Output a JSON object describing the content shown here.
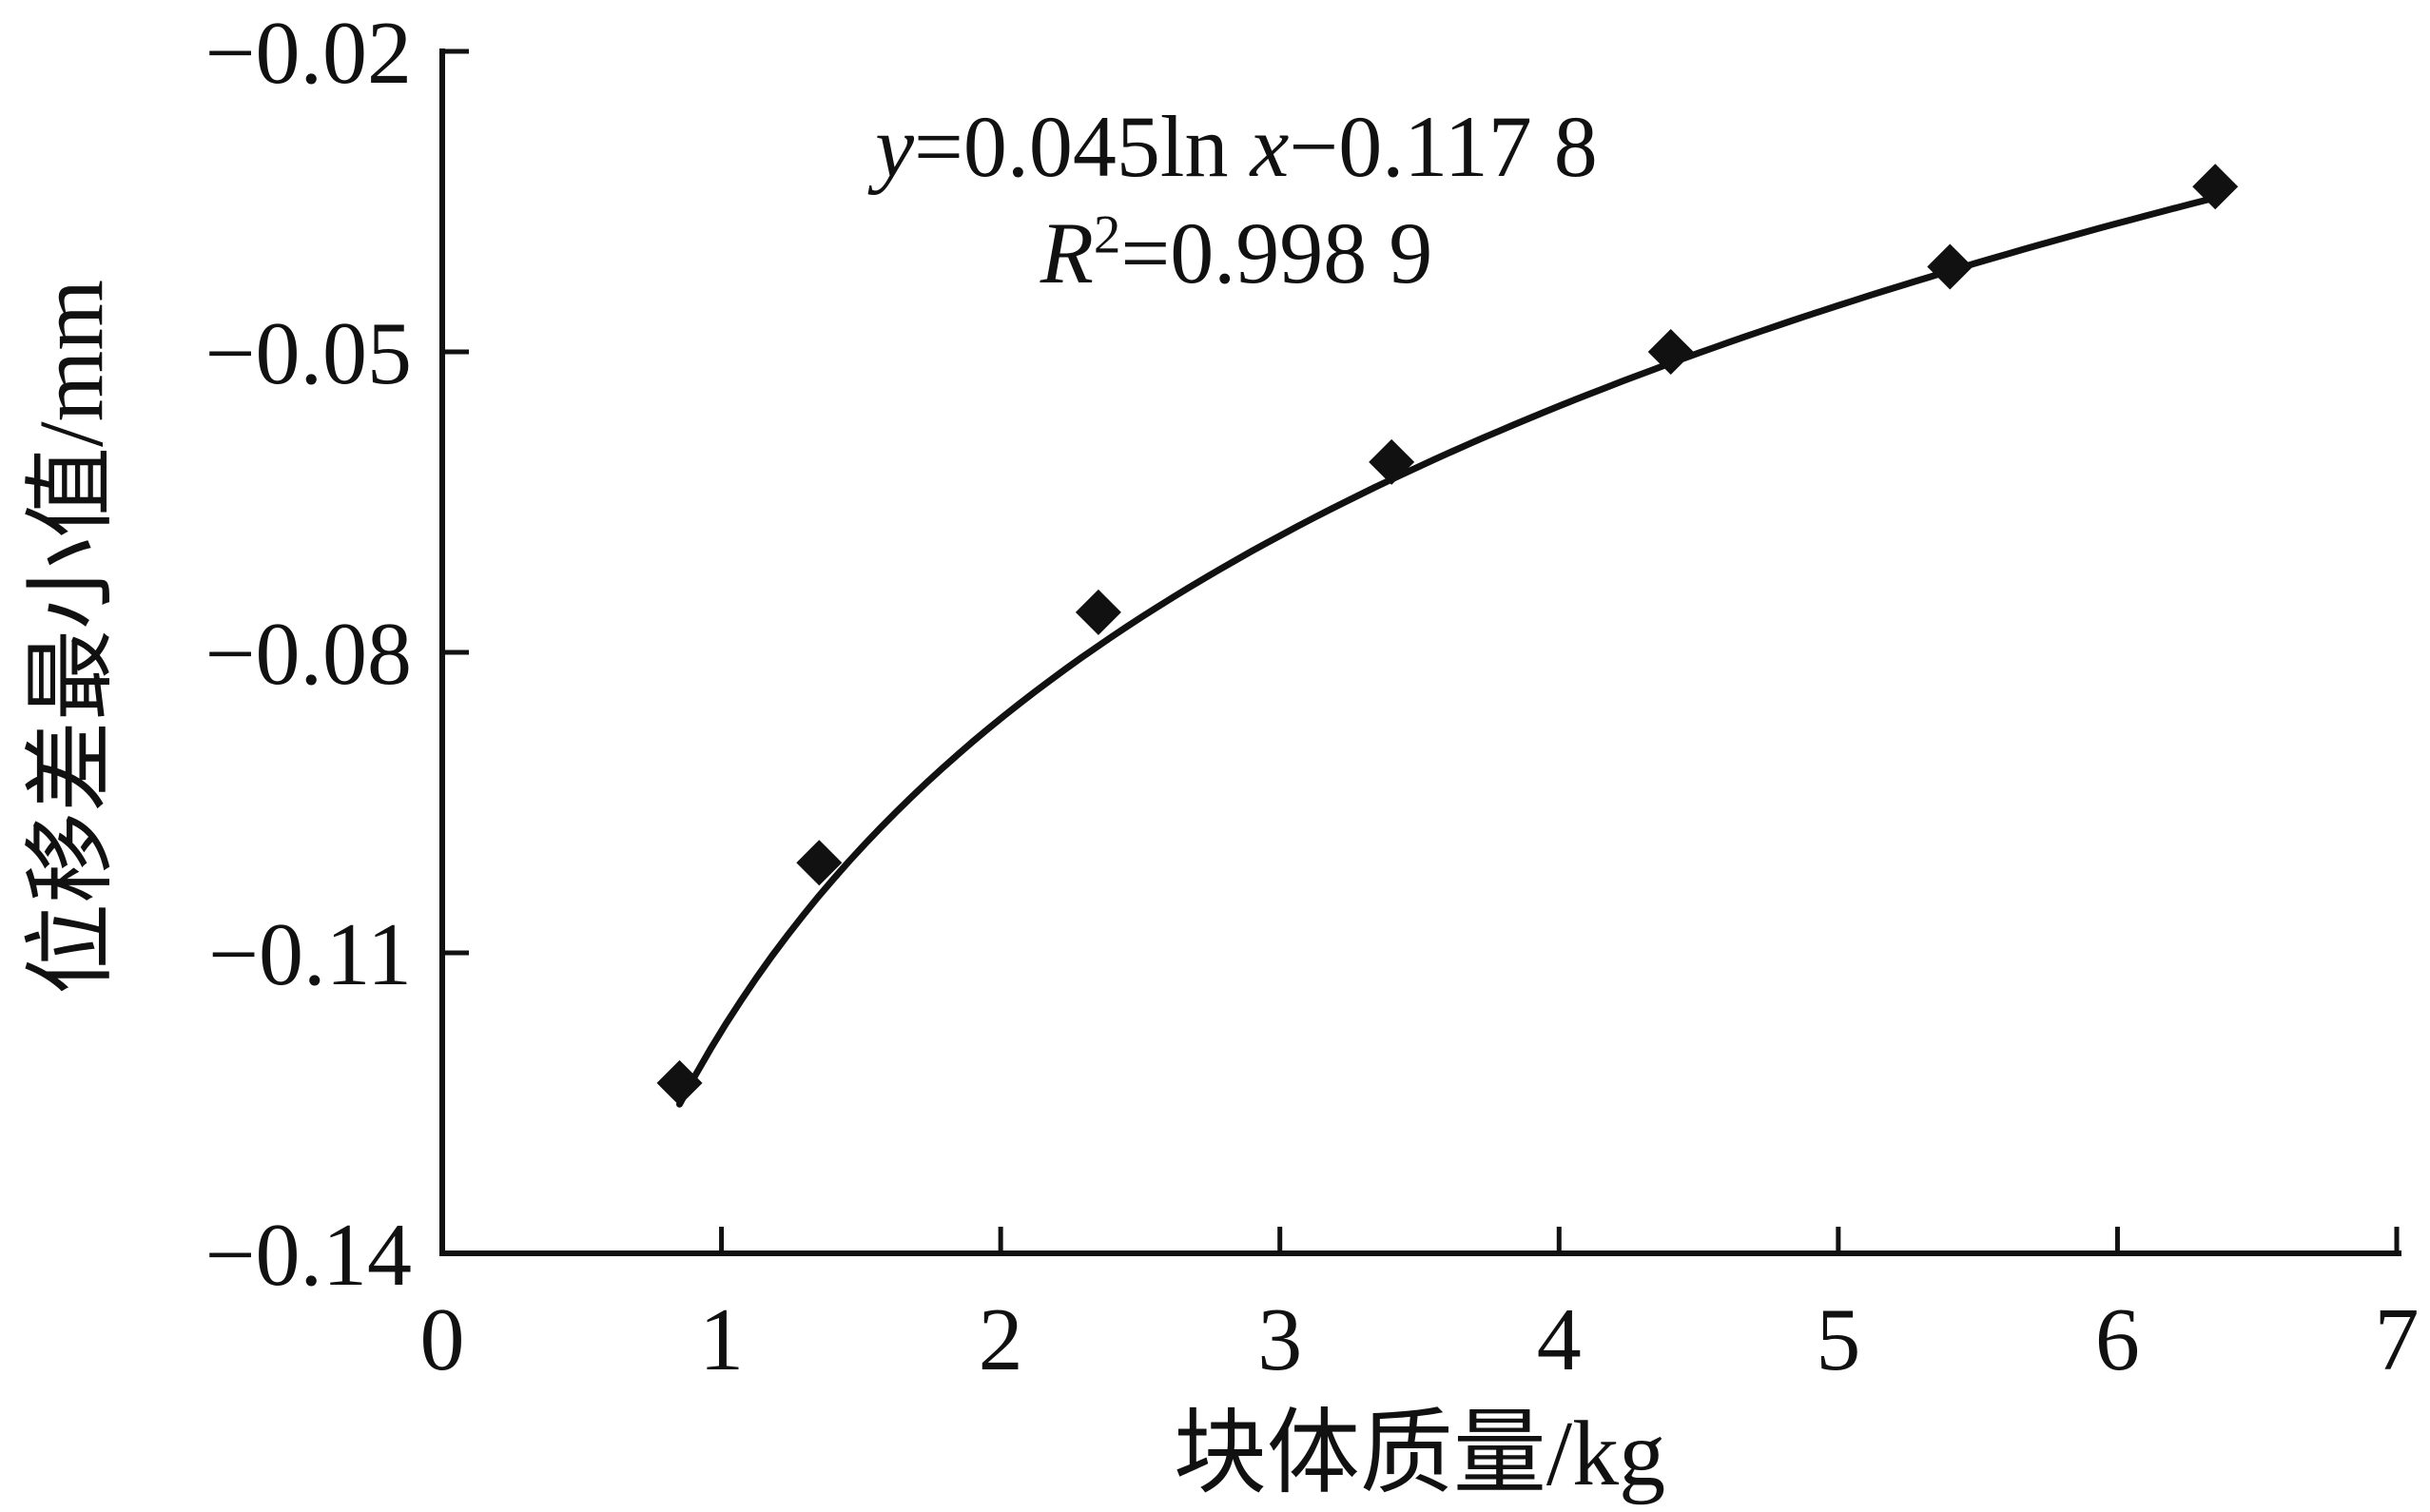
{
  "figure": {
    "background": "#ffffff",
    "ink": "#111111"
  },
  "chart_data": {
    "type": "scatter",
    "title": "",
    "xlabel": "块体质量/kg",
    "ylabel": "位移差最小值/mm",
    "xlim": [
      0,
      7
    ],
    "ylim": [
      -0.14,
      -0.02
    ],
    "grid": false,
    "legend": null,
    "x_ticks": [
      0,
      1,
      2,
      3,
      4,
      5,
      6,
      7
    ],
    "x_tick_labels": [
      "0",
      "1",
      "2",
      "3",
      "4",
      "5",
      "6",
      "7"
    ],
    "y_ticks": [
      -0.02,
      -0.05,
      -0.08,
      -0.11,
      -0.14
    ],
    "y_tick_labels": [
      "−0.02",
      "−0.05",
      "−0.08",
      "−0.11",
      "−0.14"
    ],
    "points": {
      "x": [
        0.85,
        1.35,
        2.35,
        3.4,
        4.4,
        5.4,
        6.35
      ],
      "y": [
        -0.123,
        -0.101,
        -0.076,
        -0.061,
        -0.05,
        -0.0415,
        -0.0335
      ]
    },
    "fit": {
      "type": "log",
      "a": 0.045,
      "b": -0.1178,
      "x_start": 0.85,
      "x_end": 6.38,
      "equation": "y=0.045ln x−0.117 8",
      "r_squared": "R²=0.998 9"
    }
  },
  "annotation": {
    "eq_y": "y",
    "eq_mid": "=0.045ln ",
    "eq_x": "x",
    "eq_rest": "−0.117 8",
    "r_label": "R",
    "r_sup": "2",
    "r_rest": "=0.998 9"
  }
}
